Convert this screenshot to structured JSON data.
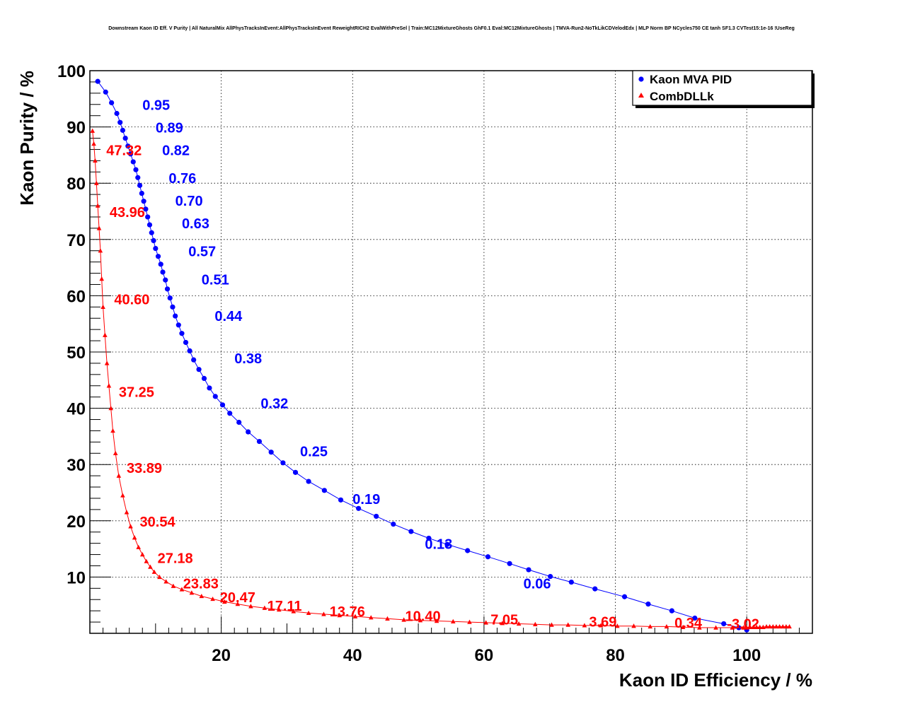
{
  "chart_data": {
    "type": "scatter",
    "title": "Downstream Kaon ID Eff. V Purity | All NaturalMix AllPhysTracksInEvent:AllPhysTracksInEvent ReweightRICH2 EvalWithPreSel | Train:MC12MixtureGhosts GhF0.1 Eval:MC12MixtureGhosts | TMVA-Run2-NoTkLikCDVelodEdx | MLP Norm BP NCycles750 CE tanh SF1.3 CVTest15:1e-16 !UseReg",
    "xlabel": "Kaon ID Efficiency / %",
    "ylabel": "Kaon Purity / %",
    "xlim": [
      0,
      110
    ],
    "ylim": [
      0,
      100
    ],
    "x_ticks": [
      "20",
      "40",
      "60",
      "80",
      "100"
    ],
    "y_ticks": [
      "10",
      "20",
      "30",
      "40",
      "50",
      "60",
      "70",
      "80",
      "90",
      "100"
    ],
    "grid": true,
    "legend_position": "top-right",
    "series": [
      {
        "name": "Kaon MVA PID",
        "color": "#0000ff",
        "marker": "circle",
        "points": [
          [
            1.2,
            98.1
          ],
          [
            2.4,
            96.2
          ],
          [
            3.3,
            94.3
          ],
          [
            4.1,
            92.4
          ],
          [
            4.6,
            90.8
          ],
          [
            5.0,
            89.4
          ],
          [
            5.4,
            88.0
          ],
          [
            5.8,
            86.6
          ],
          [
            6.2,
            85.2
          ],
          [
            6.6,
            83.8
          ],
          [
            7.0,
            82.4
          ],
          [
            7.3,
            81.0
          ],
          [
            7.6,
            79.6
          ],
          [
            7.9,
            78.2
          ],
          [
            8.2,
            76.8
          ],
          [
            8.5,
            75.4
          ],
          [
            8.8,
            74.0
          ],
          [
            9.1,
            72.6
          ],
          [
            9.4,
            71.2
          ],
          [
            9.7,
            69.8
          ],
          [
            10.0,
            68.4
          ],
          [
            10.4,
            67.0
          ],
          [
            10.8,
            65.6
          ],
          [
            11.1,
            64.2
          ],
          [
            11.5,
            62.8
          ],
          [
            11.8,
            61.2
          ],
          [
            12.2,
            59.6
          ],
          [
            12.6,
            58.0
          ],
          [
            13.0,
            56.4
          ],
          [
            13.5,
            54.8
          ],
          [
            14.0,
            53.3
          ],
          [
            14.6,
            51.7
          ],
          [
            15.2,
            50.2
          ],
          [
            15.8,
            48.6
          ],
          [
            16.6,
            46.9
          ],
          [
            17.4,
            45.3
          ],
          [
            18.2,
            43.6
          ],
          [
            19.1,
            42.1
          ],
          [
            20.2,
            40.6
          ],
          [
            21.3,
            39.1
          ],
          [
            22.7,
            37.5
          ],
          [
            24.1,
            35.8
          ],
          [
            25.8,
            34.1
          ],
          [
            27.6,
            32.2
          ],
          [
            29.4,
            30.3
          ],
          [
            31.3,
            28.6
          ],
          [
            33.3,
            27.0
          ],
          [
            35.7,
            25.4
          ],
          [
            38.2,
            23.7
          ],
          [
            40.9,
            22.2
          ],
          [
            43.6,
            20.8
          ],
          [
            46.2,
            19.4
          ],
          [
            48.9,
            18.1
          ],
          [
            51.6,
            16.9
          ],
          [
            54.4,
            15.8
          ],
          [
            57.5,
            14.7
          ],
          [
            60.6,
            13.6
          ],
          [
            63.9,
            12.4
          ],
          [
            66.8,
            11.3
          ],
          [
            70.1,
            10.1
          ],
          [
            73.3,
            9.1
          ],
          [
            76.9,
            7.9
          ],
          [
            81.4,
            6.5
          ],
          [
            85.0,
            5.2
          ],
          [
            88.6,
            4.0
          ],
          [
            92.1,
            2.7
          ],
          [
            96.5,
            1.7
          ],
          [
            98.8,
            1.0
          ],
          [
            100.0,
            0.6
          ]
        ],
        "labels": [
          {
            "text": "0.95",
            "x": 8.0,
            "y": 93.0
          },
          {
            "text": "0.89",
            "x": 10.0,
            "y": 89.0
          },
          {
            "text": "0.82",
            "x": 11.0,
            "y": 85.0
          },
          {
            "text": "0.76",
            "x": 12.0,
            "y": 80.0
          },
          {
            "text": "0.70",
            "x": 13.0,
            "y": 76.0
          },
          {
            "text": "0.63",
            "x": 14.0,
            "y": 72.0
          },
          {
            "text": "0.57",
            "x": 15.0,
            "y": 67.0
          },
          {
            "text": "0.51",
            "x": 17.0,
            "y": 62.0
          },
          {
            "text": "0.44",
            "x": 19.0,
            "y": 55.5
          },
          {
            "text": "0.38",
            "x": 22.0,
            "y": 48.0
          },
          {
            "text": "0.32",
            "x": 26.0,
            "y": 40.0
          },
          {
            "text": "0.25",
            "x": 32.0,
            "y": 31.5
          },
          {
            "text": "0.19",
            "x": 40.0,
            "y": 23.0
          },
          {
            "text": "0.13",
            "x": 51.0,
            "y": 15.0
          },
          {
            "text": "0.06",
            "x": 66.0,
            "y": 8.0
          }
        ]
      },
      {
        "name": "CombDLLk",
        "color": "#ff0000",
        "marker": "triangle",
        "points": [
          [
            0.4,
            89.3
          ],
          [
            0.6,
            87.0
          ],
          [
            0.8,
            84.0
          ],
          [
            1.0,
            80.0
          ],
          [
            1.2,
            76.0
          ],
          [
            1.4,
            72.0
          ],
          [
            1.6,
            68.0
          ],
          [
            1.8,
            63.0
          ],
          [
            2.0,
            58.0
          ],
          [
            2.3,
            53.0
          ],
          [
            2.6,
            48.0
          ],
          [
            2.9,
            44.0
          ],
          [
            3.2,
            40.0
          ],
          [
            3.5,
            36.0
          ],
          [
            3.9,
            32.0
          ],
          [
            4.4,
            28.0
          ],
          [
            5.0,
            24.5
          ],
          [
            5.6,
            21.5
          ],
          [
            6.2,
            19.0
          ],
          [
            6.8,
            17.0
          ],
          [
            7.4,
            15.3
          ],
          [
            8.0,
            14.0
          ],
          [
            8.6,
            12.8
          ],
          [
            9.2,
            11.8
          ],
          [
            9.8,
            10.9
          ],
          [
            10.6,
            10.0
          ],
          [
            11.6,
            9.2
          ],
          [
            12.7,
            8.4
          ],
          [
            14.0,
            7.8
          ],
          [
            15.5,
            7.2
          ],
          [
            17.0,
            6.6
          ],
          [
            18.7,
            6.1
          ],
          [
            20.5,
            5.6
          ],
          [
            22.5,
            5.2
          ],
          [
            24.5,
            4.8
          ],
          [
            26.6,
            4.5
          ],
          [
            28.8,
            4.2
          ],
          [
            31.0,
            3.9
          ],
          [
            33.3,
            3.6
          ],
          [
            35.6,
            3.4
          ],
          [
            38.0,
            3.2
          ],
          [
            40.4,
            3.0
          ],
          [
            42.8,
            2.8
          ],
          [
            45.3,
            2.6
          ],
          [
            47.8,
            2.4
          ],
          [
            50.3,
            2.3
          ],
          [
            52.8,
            2.2
          ],
          [
            55.3,
            2.1
          ],
          [
            57.8,
            2.0
          ],
          [
            60.3,
            1.9
          ],
          [
            62.8,
            1.8
          ],
          [
            65.3,
            1.7
          ],
          [
            67.8,
            1.6
          ],
          [
            70.3,
            1.5
          ],
          [
            72.8,
            1.5
          ],
          [
            75.3,
            1.4
          ],
          [
            77.8,
            1.4
          ],
          [
            80.3,
            1.3
          ],
          [
            82.8,
            1.3
          ],
          [
            85.3,
            1.2
          ],
          [
            87.8,
            1.2
          ],
          [
            90.3,
            1.1
          ],
          [
            92.8,
            1.0
          ],
          [
            95.3,
            1.0
          ],
          [
            97.8,
            1.0
          ],
          [
            99.5,
            1.0
          ],
          [
            100.0,
            1.0
          ],
          [
            100.5,
            1.1
          ],
          [
            101.0,
            1.1
          ],
          [
            101.5,
            1.1
          ],
          [
            102.0,
            1.1
          ],
          [
            102.5,
            1.1
          ],
          [
            103.0,
            1.2
          ],
          [
            103.5,
            1.2
          ],
          [
            104.0,
            1.2
          ],
          [
            104.5,
            1.2
          ],
          [
            105.0,
            1.2
          ],
          [
            105.5,
            1.2
          ],
          [
            106.0,
            1.2
          ],
          [
            106.5,
            1.2
          ]
        ],
        "labels": [
          {
            "text": "47.32",
            "x": 2.5,
            "y": 85.0
          },
          {
            "text": "43.96",
            "x": 3.0,
            "y": 74.0
          },
          {
            "text": "40.60",
            "x": 3.7,
            "y": 58.5
          },
          {
            "text": "37.25",
            "x": 4.4,
            "y": 42.0
          },
          {
            "text": "33.89",
            "x": 5.6,
            "y": 28.5
          },
          {
            "text": "30.54",
            "x": 7.6,
            "y": 19.0
          },
          {
            "text": "27.18",
            "x": 10.3,
            "y": 12.5
          },
          {
            "text": "23.83",
            "x": 14.2,
            "y": 8.0
          },
          {
            "text": "20.47",
            "x": 19.8,
            "y": 5.5
          },
          {
            "text": "17.11",
            "x": 27.0,
            "y": 4.0
          },
          {
            "text": "13.76",
            "x": 36.5,
            "y": 3.0
          },
          {
            "text": "10.40",
            "x": 48.0,
            "y": 2.2
          },
          {
            "text": "7.05",
            "x": 61.0,
            "y": 1.6
          },
          {
            "text": "3.69",
            "x": 76.0,
            "y": 1.2
          },
          {
            "text": "0.34",
            "x": 89.0,
            "y": 1.0
          },
          {
            "text": "-3.02",
            "x": 97.0,
            "y": 0.8
          }
        ]
      }
    ]
  }
}
